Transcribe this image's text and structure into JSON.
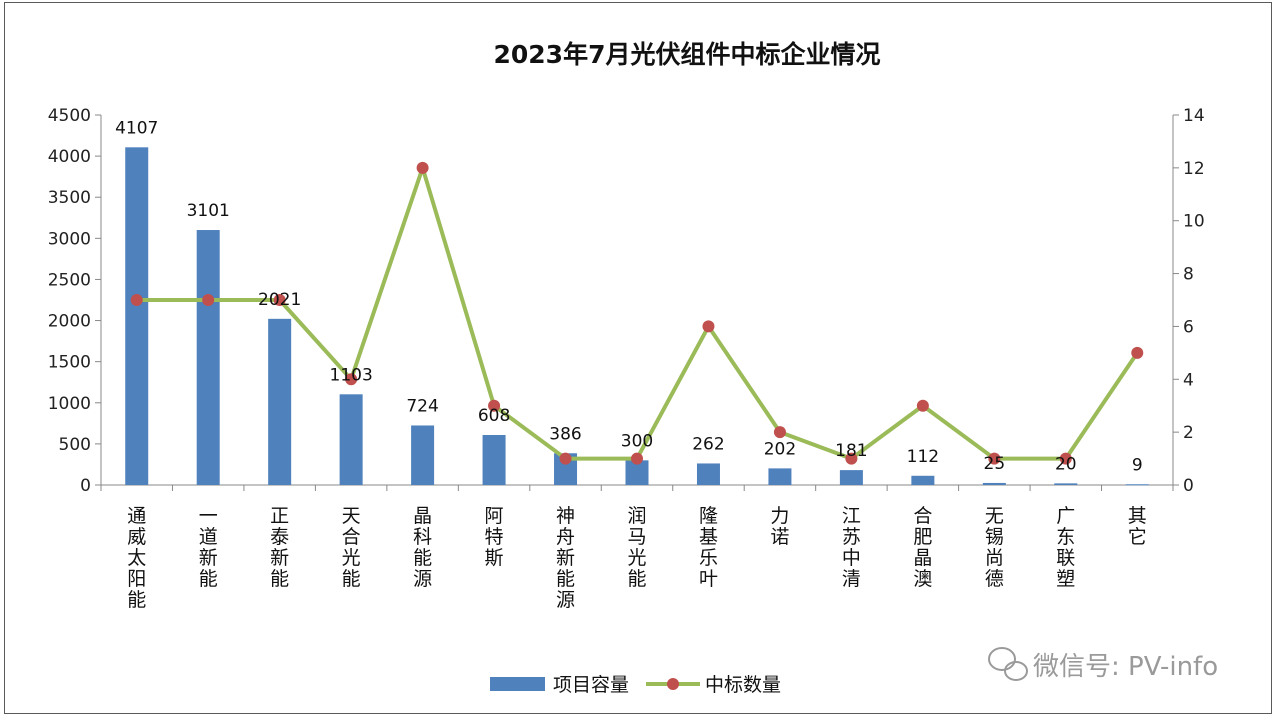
{
  "chart_data": {
    "type": "bar",
    "title": "2023年7月光伏组件中标企业情况",
    "categories": [
      "通威太阳能",
      "一道新能",
      "正泰新能",
      "天合光能",
      "晶科能源",
      "阿特斯",
      "神舟新能源",
      "润马光能",
      "隆基乐叶",
      "力诺",
      "江苏中清",
      "合肥晶澳",
      "无锡尚德",
      "广东联塑",
      "其它"
    ],
    "series": [
      {
        "name": "项目容量",
        "type": "bar",
        "axis": "left",
        "color": "#4f81bd",
        "values": [
          4107,
          3101,
          2021,
          1103,
          724,
          608,
          386,
          300,
          262,
          202,
          181,
          112,
          25,
          20,
          9
        ]
      },
      {
        "name": "中标数量",
        "type": "line",
        "axis": "right",
        "color": "#9bbb59",
        "marker_color": "#c0504d",
        "values": [
          7,
          7,
          7,
          4,
          12,
          3,
          1,
          1,
          6,
          2,
          1,
          3,
          1,
          1,
          5
        ]
      }
    ],
    "data_labels": [
      "4107",
      "3101",
      "2021",
      "1103",
      "724",
      "608",
      "386",
      "300",
      "262",
      "202",
      "181",
      "112",
      "25",
      "20",
      "9"
    ],
    "ylim": [
      0,
      4500
    ],
    "yticks": [
      "0",
      "500",
      "1000",
      "1500",
      "2000",
      "2500",
      "3000",
      "3500",
      "4000",
      "4500"
    ],
    "y2lim": [
      0,
      14
    ],
    "y2ticks": [
      "0",
      "2",
      "4",
      "6",
      "8",
      "10",
      "12",
      "14"
    ],
    "legend_position": "bottom",
    "grid": false
  },
  "watermark": "微信号: PV-info"
}
